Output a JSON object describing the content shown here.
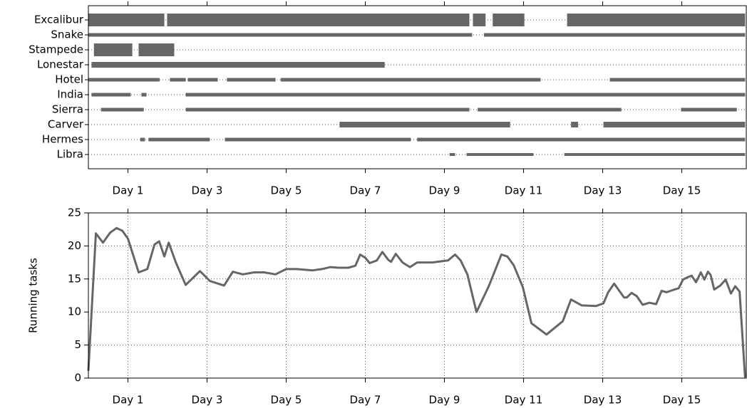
{
  "chart_data": [
    {
      "type": "timeline",
      "color": "#666666",
      "row_grid": true,
      "categories": [
        "Excalibur",
        "Snake",
        "Stampede",
        "Lonestar",
        "Hotel",
        "India",
        "Sierra",
        "Carver",
        "Hermes",
        "Libra"
      ],
      "segments": [
        [
          [
            0,
            1.92
          ],
          [
            1.99,
            9.63
          ],
          [
            9.72,
            10.04
          ],
          [
            10.22,
            11.02
          ],
          [
            12.1,
            16.6
          ]
        ],
        [
          [
            0,
            9.7
          ],
          [
            10.0,
            16.6
          ]
        ],
        [
          [
            0.14,
            1.11
          ],
          [
            1.27,
            2.17
          ]
        ],
        [
          [
            0.08,
            7.49
          ]
        ],
        [
          [
            0,
            1.8
          ],
          [
            2.06,
            2.46
          ],
          [
            2.51,
            3.27
          ],
          [
            3.5,
            4.73
          ],
          [
            4.86,
            11.43
          ],
          [
            13.18,
            16.6
          ]
        ],
        [
          [
            0.08,
            1.07
          ],
          [
            1.34,
            1.47
          ],
          [
            2.46,
            16.6
          ]
        ],
        [
          [
            0.32,
            1.4
          ],
          [
            2.46,
            9.63
          ],
          [
            9.84,
            13.47
          ],
          [
            14.98,
            16.39
          ]
        ],
        [
          [
            6.35,
            10.66
          ],
          [
            12.2,
            12.38
          ],
          [
            13.02,
            16.6
          ]
        ],
        [
          [
            1.31,
            1.43
          ],
          [
            1.52,
            3.07
          ],
          [
            3.45,
            8.15
          ],
          [
            8.31,
            16.6
          ]
        ],
        [
          [
            9.13,
            9.27
          ],
          [
            9.56,
            11.25
          ],
          [
            12.03,
            16.6
          ]
        ]
      ],
      "xlim": [
        0,
        16.63
      ],
      "xticks": [
        {
          "value": 1,
          "label": "Day 1"
        },
        {
          "value": 3,
          "label": "Day 3"
        },
        {
          "value": 5,
          "label": "Day 5"
        },
        {
          "value": 7,
          "label": "Day 7"
        },
        {
          "value": 9,
          "label": "Day 9"
        },
        {
          "value": 11,
          "label": "Day 11"
        },
        {
          "value": 13,
          "label": "Day 13"
        },
        {
          "value": 15,
          "label": "Day 15"
        }
      ]
    },
    {
      "type": "line",
      "ylabel": "Running tasks",
      "grid": true,
      "x": [
        0,
        0.19,
        0.37,
        0.55,
        0.71,
        0.86,
        1.0,
        1.27,
        1.49,
        1.67,
        1.79,
        1.92,
        2.03,
        2.21,
        2.46,
        2.82,
        3.07,
        3.43,
        3.65,
        3.9,
        4.19,
        4.44,
        4.73,
        5.0,
        5.27,
        5.67,
        5.9,
        6.12,
        6.32,
        6.57,
        6.75,
        6.87,
        7.0,
        7.11,
        7.29,
        7.43,
        7.58,
        7.65,
        7.77,
        7.94,
        8.13,
        8.31,
        8.51,
        8.69,
        9.09,
        9.27,
        9.41,
        9.58,
        9.81,
        10.12,
        10.44,
        10.59,
        10.75,
        10.98,
        11.2,
        11.58,
        11.99,
        12.2,
        12.47,
        12.83,
        13.02,
        13.14,
        13.29,
        13.54,
        13.61,
        13.73,
        13.86,
        14.01,
        14.18,
        14.35,
        14.49,
        14.62,
        14.76,
        14.92,
        15.03,
        15.16,
        15.25,
        15.36,
        15.48,
        15.57,
        15.66,
        15.73,
        15.82,
        15.97,
        16.11,
        16.24,
        16.35,
        16.46,
        16.6
      ],
      "series": [
        {
          "color": "#666666",
          "values": [
            1.1,
            21.9,
            20.5,
            22.0,
            22.7,
            22.3,
            21.1,
            16.0,
            16.5,
            20.2,
            20.7,
            18.4,
            20.5,
            17.5,
            14.1,
            16.2,
            14.7,
            14.0,
            16.1,
            15.7,
            16.0,
            16.0,
            15.7,
            16.5,
            16.5,
            16.3,
            16.5,
            16.8,
            16.7,
            16.7,
            17.0,
            18.7,
            18.2,
            17.4,
            17.8,
            19.1,
            17.9,
            17.6,
            18.8,
            17.5,
            16.8,
            17.5,
            17.5,
            17.5,
            17.8,
            18.7,
            17.8,
            15.7,
            10.0,
            13.9,
            18.7,
            18.4,
            17.1,
            13.8,
            8.3,
            6.6,
            8.6,
            11.9,
            11.0,
            10.9,
            11.3,
            13.0,
            14.3,
            12.2,
            12.2,
            12.9,
            12.4,
            11.1,
            11.4,
            11.2,
            13.2,
            13.0,
            13.3,
            13.6,
            14.9,
            15.3,
            15.5,
            14.5,
            16.0,
            14.9,
            16.1,
            15.6,
            13.4,
            14.0,
            14.9,
            12.8,
            13.9,
            13.1,
            0.1
          ]
        }
      ],
      "xlim": [
        0,
        16.63
      ],
      "xticks": [
        {
          "value": 1,
          "label": "Day 1"
        },
        {
          "value": 3,
          "label": "Day 3"
        },
        {
          "value": 5,
          "label": "Day 5"
        },
        {
          "value": 7,
          "label": "Day 7"
        },
        {
          "value": 9,
          "label": "Day 9"
        },
        {
          "value": 11,
          "label": "Day 11"
        },
        {
          "value": 13,
          "label": "Day 13"
        },
        {
          "value": 15,
          "label": "Day 15"
        }
      ],
      "ylim": [
        0,
        25
      ],
      "yticks": [
        0,
        5,
        10,
        15,
        20,
        25
      ]
    }
  ]
}
